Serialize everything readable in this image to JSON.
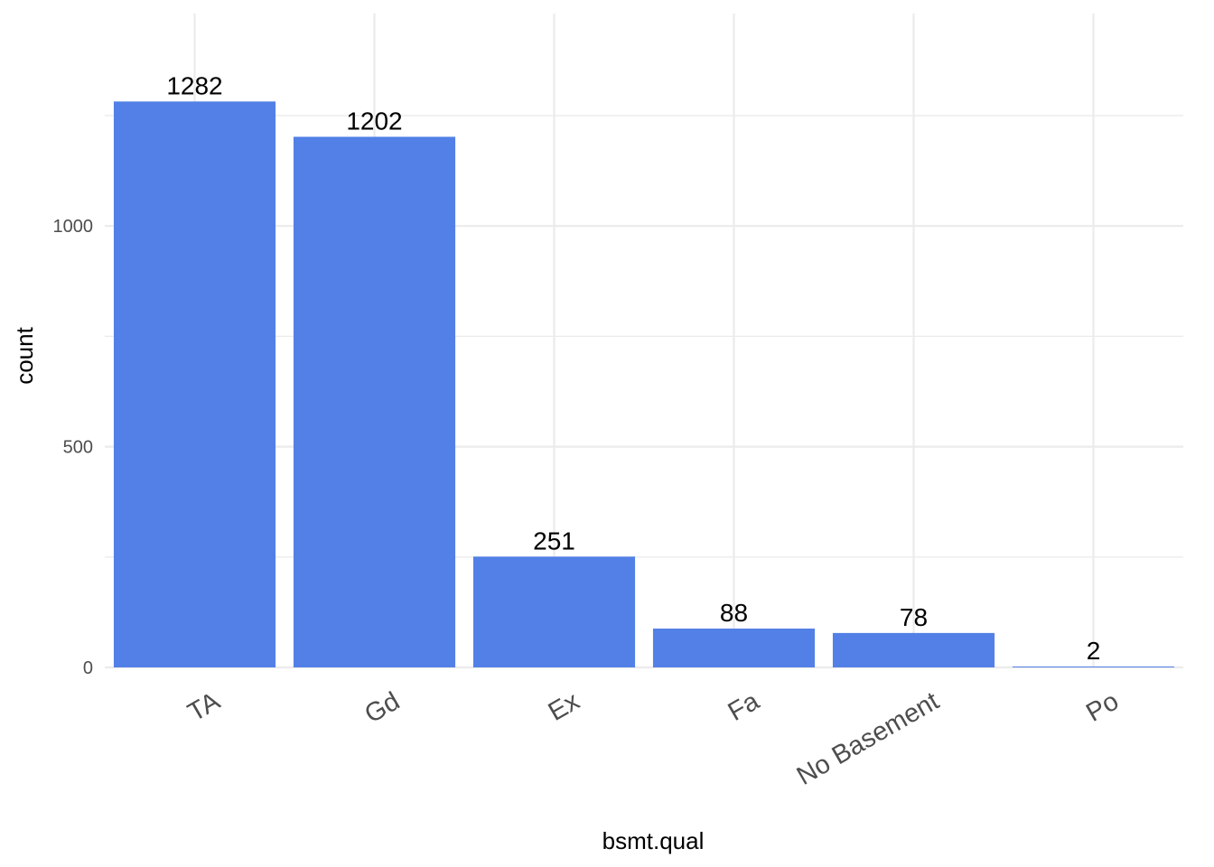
{
  "chart_data": {
    "type": "bar",
    "categories": [
      "TA",
      "Gd",
      "Ex",
      "Fa",
      "No Basement",
      "Po"
    ],
    "values": [
      1282,
      1202,
      251,
      88,
      78,
      2
    ],
    "data_labels": [
      "1282",
      "1202",
      "251",
      "88",
      "78",
      "2"
    ],
    "xlabel": "bsmt.qual",
    "ylabel": "count",
    "ylim": [
      0,
      1400
    ],
    "yticks": [
      0,
      500,
      1000
    ],
    "ytick_labels": [
      "0",
      "500",
      "1000"
    ],
    "grid": true,
    "x_tick_rotation": "30 degrees",
    "legend": "none",
    "colors": {
      "bar": "#5280E6",
      "grid": "#EBEBEB",
      "background": "#FFFFFF"
    }
  }
}
